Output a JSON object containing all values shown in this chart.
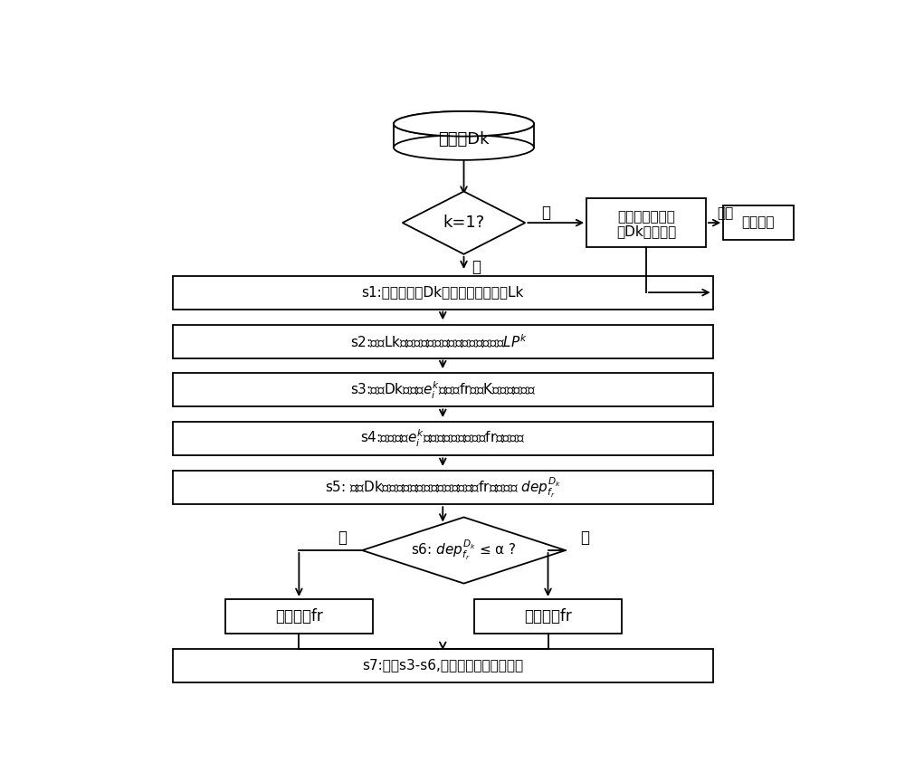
{
  "bg_color": "#ffffff",
  "figsize": [
    10.0,
    8.64
  ],
  "dpi": 100,
  "lw": 1.3,
  "db_label": "数据块Dk",
  "d1_label": "k=1?",
  "cl_label": "已有集成分类器\n对Dk进行预测",
  "res_label": "预测结果",
  "s1_label": "s1:计算数据块Dk的标签相关性矩阵Lk",
  "s2_label": "s2:计算Lk的平均标签相关度并得到标签对集$LP^k$",
  "s3_label": "s3:计算Dk中文本$e^{k}_{i}$在特征fr上的K近邻文本集合",
  "s4_label": "s4:计算文本$e^{k}_{i}$在邻域关系下对特征fr的依赖度",
  "s5_label": "s5: 计算Dk中所有文本在邻域关系下对特征fr的依赖度 $dep^{D_k}_{f_r}$",
  "d2_label": "s6: $dep^{D_k}_{f_r}$ ≤ α ?",
  "keep_label": "保留特征fr",
  "discard_label": "丢弃特征fr",
  "s7_label": "s7:重复s3-s6,得到降维后的特征空间",
  "no_label": "否",
  "yes_label": "是",
  "out_label": "输出"
}
